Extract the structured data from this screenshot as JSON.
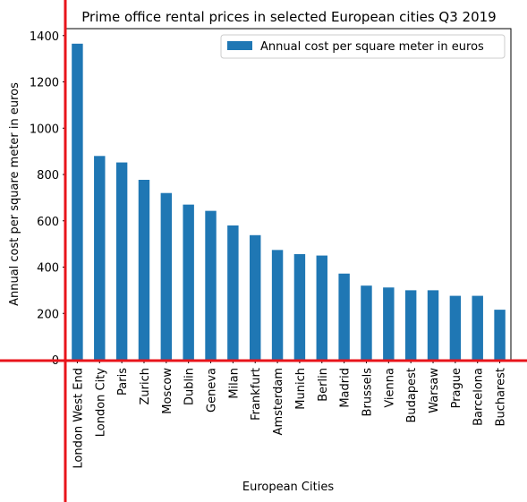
{
  "chart_data": {
    "type": "bar",
    "title": "Prime office rental prices in selected European cities Q3 2019",
    "xlabel": "European Cities",
    "ylabel": "Annual cost per square meter in euros",
    "categories": [
      "London West End",
      "London City",
      "Paris",
      "Zurich",
      "Moscow",
      "Dublin",
      "Geneva",
      "Milan",
      "Frankfurt",
      "Amsterdam",
      "Munich",
      "Berlin",
      "Madrid",
      "Brussels",
      "Vienna",
      "Budapest",
      "Warsaw",
      "Prague",
      "Barcelona",
      "Bucharest"
    ],
    "series": [
      {
        "name": "Annual cost per square meter in euros",
        "values": [
          1365,
          880,
          852,
          777,
          720,
          670,
          643,
          580,
          538,
          474,
          456,
          450,
          372,
          320,
          312,
          300,
          300,
          276,
          276,
          216
        ],
        "color": "#1f77b4"
      }
    ],
    "ylim": [
      0,
      1430
    ],
    "yticks": [
      0,
      200,
      400,
      600,
      800,
      1000,
      1200,
      1400
    ],
    "legend_position": "top-right",
    "grid": false
  },
  "annotations": {
    "crosshair_color": "#e8141b"
  }
}
